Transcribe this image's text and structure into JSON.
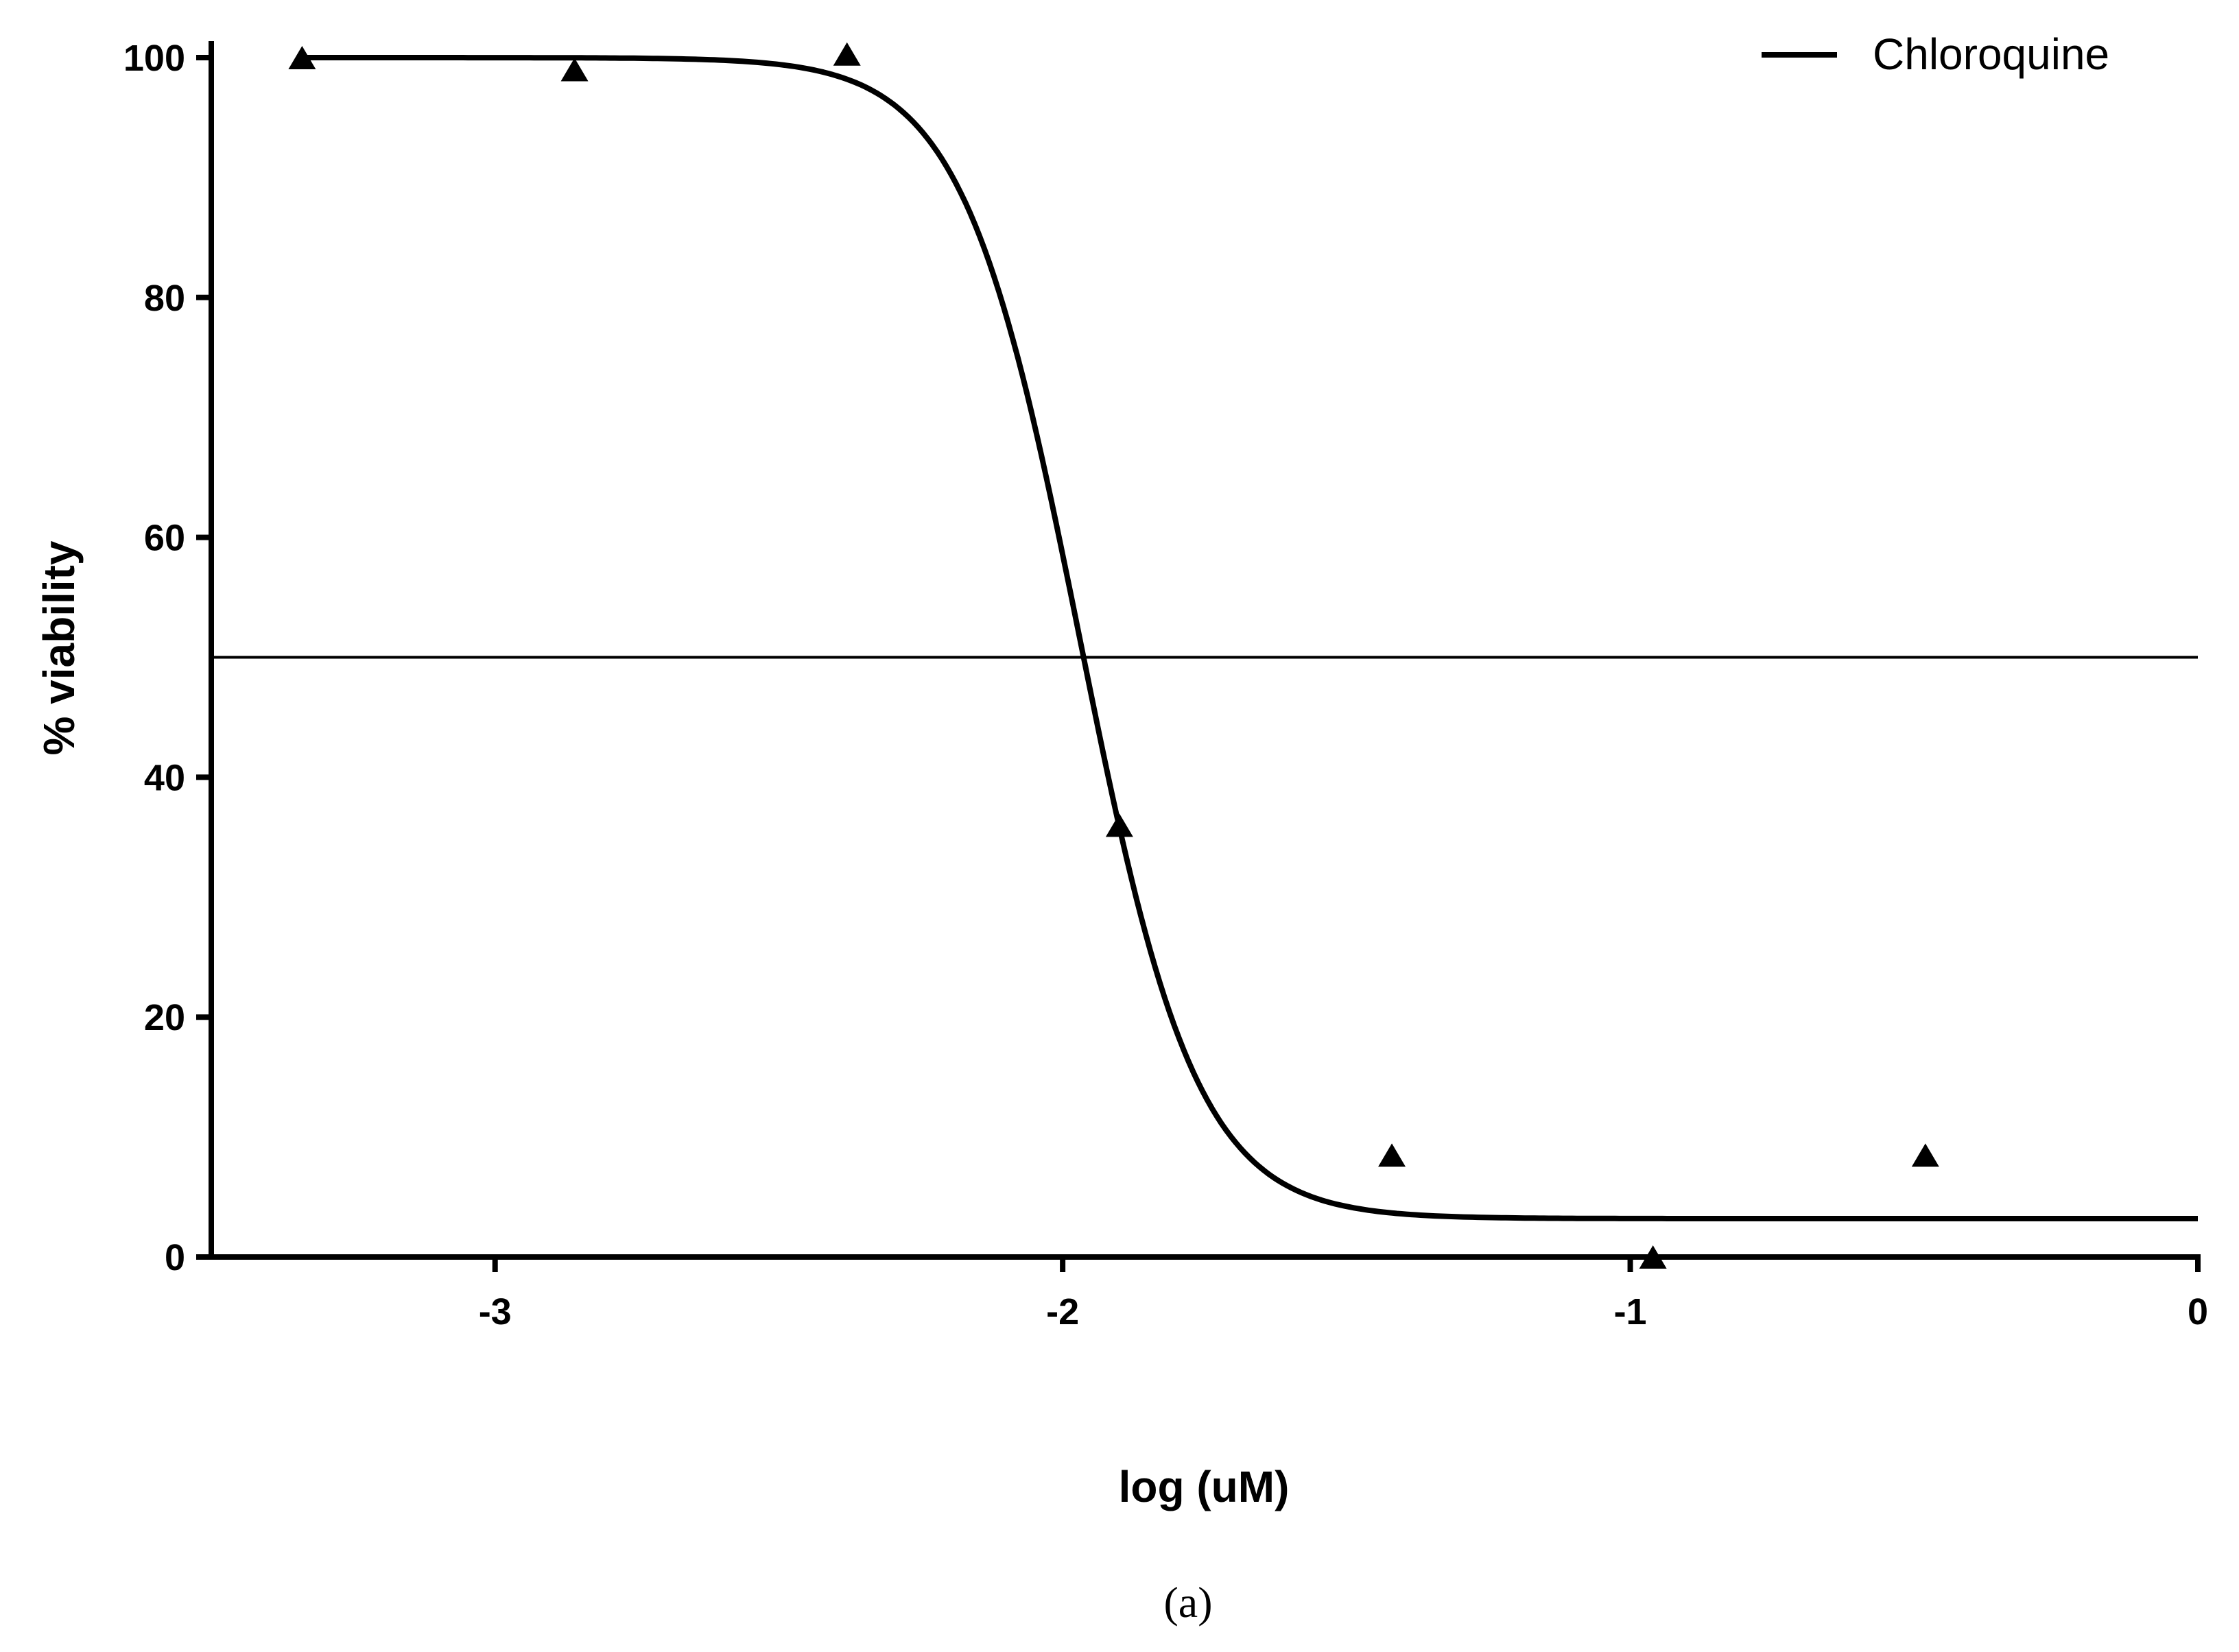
{
  "chart_data": {
    "type": "line",
    "xlabel": "log (uM)",
    "ylabel": "% viability",
    "xlim": [
      -3.5,
      0
    ],
    "ylim": [
      0,
      100
    ],
    "x_ticks": [
      -3,
      -2,
      -1,
      0
    ],
    "x_tick_labels": [
      "-3",
      "-2",
      "-1",
      "0"
    ],
    "y_ticks": [
      0,
      20,
      40,
      60,
      80,
      100
    ],
    "y_tick_labels": [
      "0",
      "20",
      "40",
      "60",
      "80",
      "100"
    ],
    "legend": {
      "position": "top-right",
      "entries": [
        "Chloroquine"
      ]
    },
    "grid": false,
    "reference_line": {
      "y": 50
    },
    "series": [
      {
        "name": "Chloroquine",
        "kind": "scatter",
        "marker": "triangle",
        "x": [
          -3.34,
          -2.86,
          -2.38,
          -1.9,
          -1.42,
          -0.96,
          -0.48
        ],
        "y": [
          100,
          99,
          100.3,
          36,
          8.5,
          0,
          8.5
        ]
      },
      {
        "name": "Chloroquine",
        "kind": "fitted-curve",
        "top": 100,
        "bottom": 3.2,
        "log_ic50": -1.97,
        "hill_slope": -4.2,
        "x_range": [
          -3.34,
          0
        ]
      }
    ],
    "panel_label": "(a)"
  }
}
